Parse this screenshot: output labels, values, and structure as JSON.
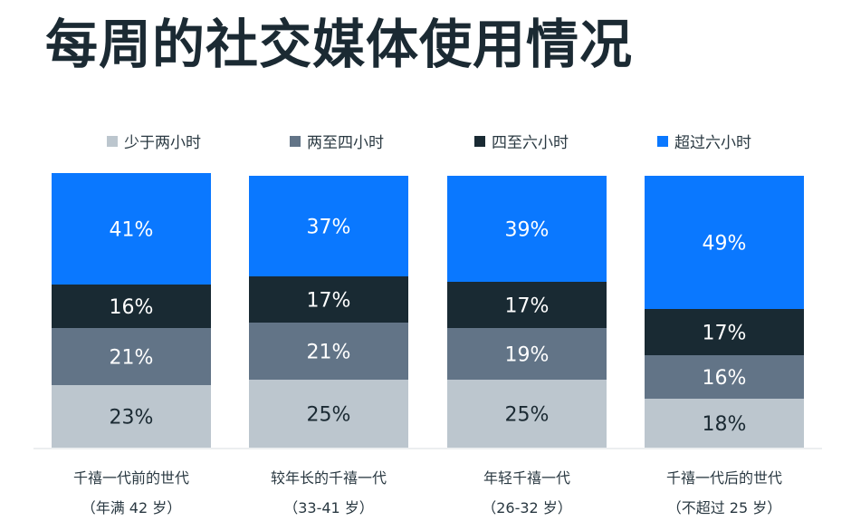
{
  "title": "每周的社交媒体使用情况",
  "legend": [
    {
      "label": "少于两小时",
      "color": "#bcc6ce"
    },
    {
      "label": "两至四小时",
      "color": "#627487"
    },
    {
      "label": "四至六小时",
      "color": "#192a33"
    },
    {
      "label": "超过六小时",
      "color": "#0a78ff"
    }
  ],
  "chart_data": {
    "type": "bar",
    "stacked": true,
    "percent_stacked": true,
    "categories": [
      [
        "千禧一代前的世代",
        "（年满 42 岁）"
      ],
      [
        "较年长的千禧一代",
        "（33-41 岁）"
      ],
      [
        "年轻千禧一代",
        "（26-32 岁）"
      ],
      [
        "千禧一代后的世代",
        "（不超过 25 岁）"
      ]
    ],
    "series": [
      {
        "name": "少于两小时",
        "color": "#bcc6ce",
        "label_color": "#1b2a33",
        "values": [
          23,
          25,
          25,
          18
        ]
      },
      {
        "name": "两至四小时",
        "color": "#627487",
        "label_color": "#ffffff",
        "values": [
          21,
          21,
          19,
          16
        ]
      },
      {
        "name": "四至六小时",
        "color": "#192a33",
        "label_color": "#ffffff",
        "values": [
          16,
          17,
          17,
          17
        ]
      },
      {
        "name": "超过六小时",
        "color": "#0a78ff",
        "label_color": "#ffffff",
        "values": [
          41,
          37,
          39,
          49
        ]
      }
    ],
    "value_suffix": "%",
    "legend_position": "top",
    "grid": false
  }
}
